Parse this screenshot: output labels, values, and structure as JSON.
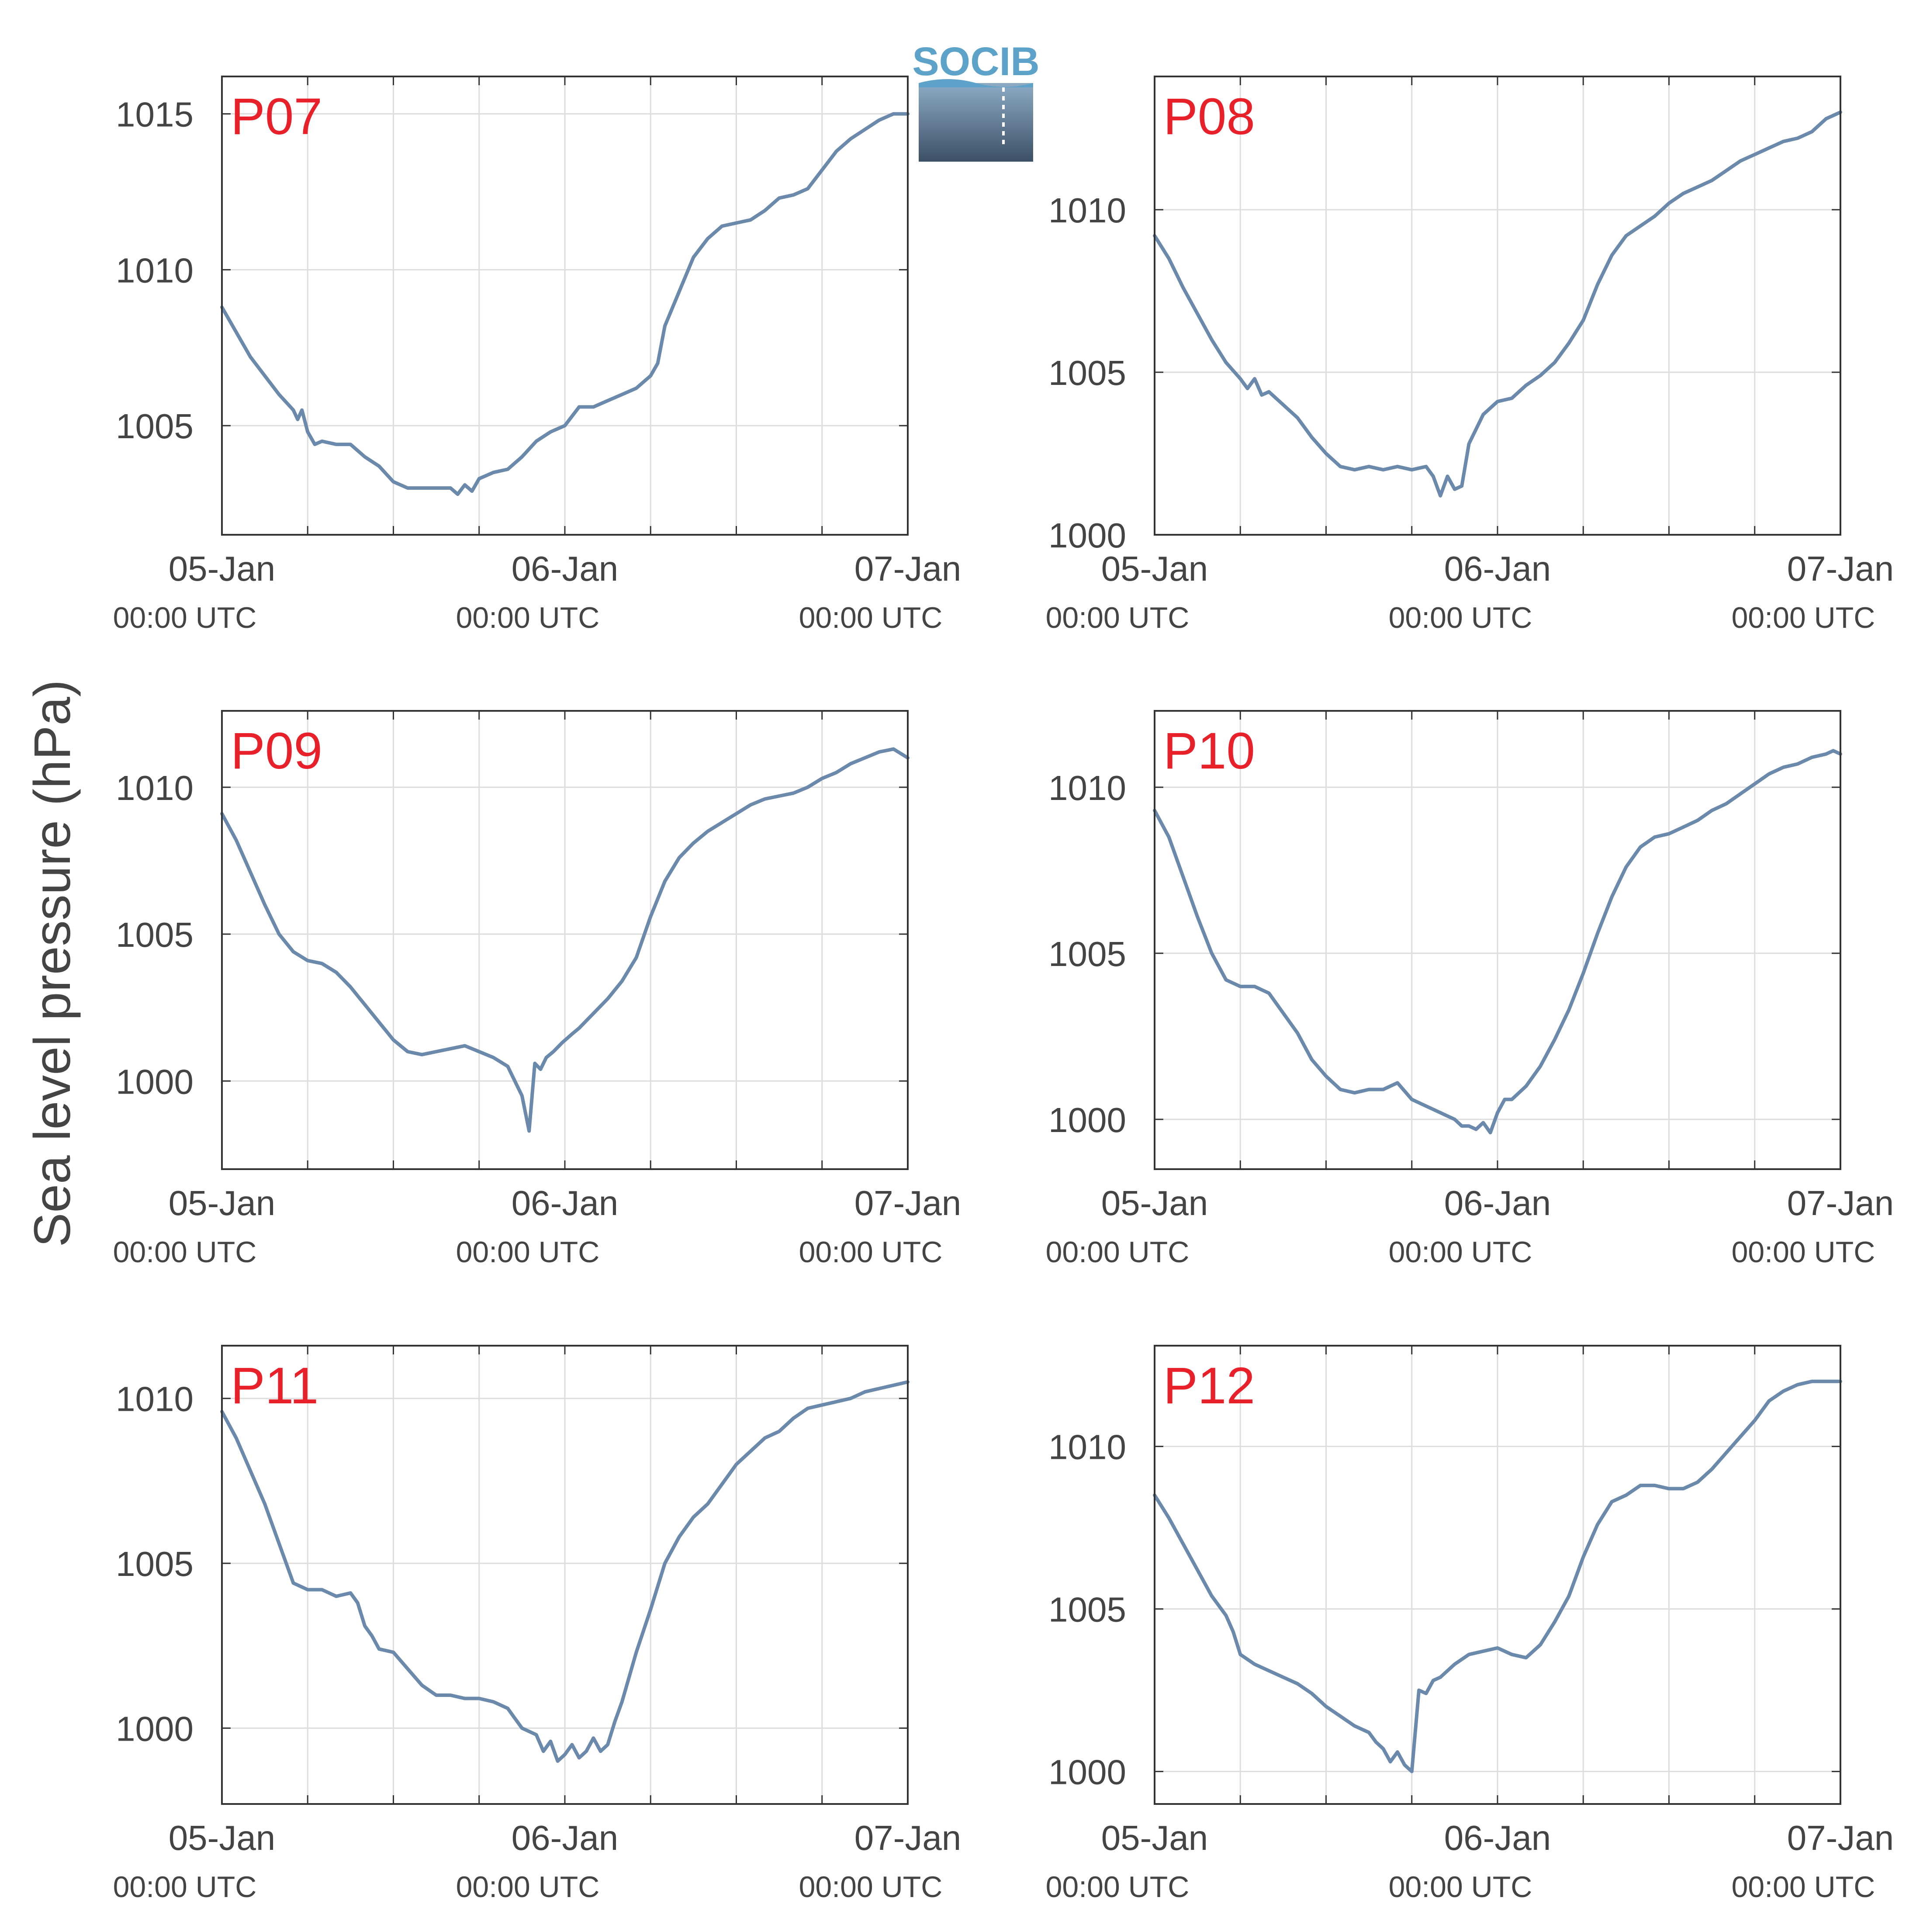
{
  "figure": {
    "ylabel": "Sea level pressure (hPa)",
    "logo_text": "SOCIB",
    "colors": {
      "line": "#6a89ab",
      "panel_label": "#e8202a",
      "grid": "#dddddd",
      "frame": "#333333",
      "text": "#444444",
      "logo_top": "#8dabc5",
      "logo_bottom": "#3c5066",
      "logo_text": "#5da2c8"
    }
  },
  "chart_data": [
    {
      "type": "line",
      "title": "P07",
      "x_ticks": [
        {
          "main": "05-Jan",
          "sub": "00:00 UTC"
        },
        {
          "main": "06-Jan",
          "sub": "00:00 UTC"
        },
        {
          "main": "07-Jan",
          "sub": "00:00 UTC"
        }
      ],
      "x_unit": "hours since 05-Jan 00:00 UTC",
      "xlim": [
        0,
        48
      ],
      "ylim": [
        1001.5,
        1016.2
      ],
      "y_ticks": [
        1005,
        1010,
        1015
      ],
      "grid": true,
      "series": [
        {
          "x": [
            0,
            1,
            2,
            3,
            4,
            5,
            5.3,
            5.6,
            6,
            6.5,
            7,
            8,
            9,
            10,
            11,
            12,
            13,
            14,
            15,
            16,
            16.5,
            17,
            17.5,
            18,
            19,
            20,
            21,
            22,
            23,
            24,
            25,
            26,
            27,
            28,
            29,
            30,
            30.5,
            31,
            32,
            33,
            34,
            35,
            36,
            37,
            38,
            39,
            40,
            41,
            42,
            43,
            44,
            45,
            46,
            47,
            48
          ],
          "y": [
            1008.8,
            1008.0,
            1007.2,
            1006.6,
            1006.0,
            1005.5,
            1005.2,
            1005.5,
            1004.8,
            1004.4,
            1004.5,
            1004.4,
            1004.4,
            1004.0,
            1003.7,
            1003.2,
            1003.0,
            1003.0,
            1003.0,
            1003.0,
            1002.8,
            1003.1,
            1002.9,
            1003.3,
            1003.5,
            1003.6,
            1004.0,
            1004.5,
            1004.8,
            1005.0,
            1005.6,
            1005.6,
            1005.8,
            1006.0,
            1006.2,
            1006.6,
            1007.0,
            1008.2,
            1009.3,
            1010.4,
            1011.0,
            1011.4,
            1011.5,
            1011.6,
            1011.9,
            1012.3,
            1012.4,
            1012.6,
            1013.2,
            1013.8,
            1014.2,
            1014.5,
            1014.8,
            1015.0,
            1015.0
          ]
        }
      ]
    },
    {
      "type": "line",
      "title": "P08",
      "x_ticks": [
        {
          "main": "05-Jan",
          "sub": "00:00 UTC"
        },
        {
          "main": "06-Jan",
          "sub": "00:00 UTC"
        },
        {
          "main": "07-Jan",
          "sub": "00:00 UTC"
        }
      ],
      "x_unit": "hours since 05-Jan 00:00 UTC",
      "xlim": [
        0,
        48
      ],
      "ylim": [
        1000,
        1014.1
      ],
      "y_ticks": [
        1000,
        1005,
        1010
      ],
      "grid": true,
      "series": [
        {
          "x": [
            0,
            1,
            2,
            3,
            4,
            5,
            6,
            6.5,
            7,
            7.5,
            8,
            9,
            10,
            11,
            12,
            13,
            14,
            15,
            16,
            17,
            18,
            19,
            19.5,
            20,
            20.5,
            21,
            21.5,
            22,
            23,
            24,
            25,
            26,
            27,
            28,
            29,
            30,
            31,
            32,
            33,
            34,
            35,
            36,
            37,
            38,
            39,
            40,
            41,
            42,
            43,
            44,
            45,
            46,
            47,
            48
          ],
          "y": [
            1009.2,
            1008.5,
            1007.6,
            1006.8,
            1006.0,
            1005.3,
            1004.8,
            1004.5,
            1004.8,
            1004.3,
            1004.4,
            1004.0,
            1003.6,
            1003.0,
            1002.5,
            1002.1,
            1002.0,
            1002.1,
            1002.0,
            1002.1,
            1002.0,
            1002.1,
            1001.8,
            1001.2,
            1001.8,
            1001.4,
            1001.5,
            1002.8,
            1003.7,
            1004.1,
            1004.2,
            1004.6,
            1004.9,
            1005.3,
            1005.9,
            1006.6,
            1007.7,
            1008.6,
            1009.2,
            1009.5,
            1009.8,
            1010.2,
            1010.5,
            1010.7,
            1010.9,
            1011.2,
            1011.5,
            1011.7,
            1011.9,
            1012.1,
            1012.2,
            1012.4,
            1012.8,
            1013.0
          ]
        }
      ]
    },
    {
      "type": "line",
      "title": "P09",
      "x_ticks": [
        {
          "main": "05-Jan",
          "sub": "00:00 UTC"
        },
        {
          "main": "06-Jan",
          "sub": "00:00 UTC"
        },
        {
          "main": "07-Jan",
          "sub": "00:00 UTC"
        }
      ],
      "x_unit": "hours since 05-Jan 00:00 UTC",
      "xlim": [
        0,
        48
      ],
      "ylim": [
        997.0,
        1012.6
      ],
      "y_ticks": [
        1000,
        1005,
        1010
      ],
      "grid": true,
      "series": [
        {
          "x": [
            0,
            1,
            2,
            3,
            4,
            5,
            6,
            7,
            8,
            9,
            10,
            11,
            12,
            13,
            14,
            15,
            16,
            17,
            18,
            19,
            20,
            20.5,
            21,
            21.5,
            21.9,
            22.3,
            22.7,
            23.2,
            23.8,
            24.5,
            25,
            26,
            27,
            28,
            29,
            30,
            31,
            32,
            33,
            34,
            35,
            36,
            37,
            38,
            39,
            40,
            41,
            42,
            43,
            44,
            45,
            46,
            47,
            48
          ],
          "y": [
            1009.1,
            1008.2,
            1007.1,
            1006.0,
            1005.0,
            1004.4,
            1004.1,
            1004.0,
            1003.7,
            1003.2,
            1002.6,
            1002.0,
            1001.4,
            1001.0,
            1000.9,
            1001.0,
            1001.1,
            1001.2,
            1001.0,
            1000.8,
            1000.5,
            1000.0,
            999.5,
            998.3,
            1000.6,
            1000.4,
            1000.8,
            1001.0,
            1001.3,
            1001.6,
            1001.8,
            1002.3,
            1002.8,
            1003.4,
            1004.2,
            1005.6,
            1006.8,
            1007.6,
            1008.1,
            1008.5,
            1008.8,
            1009.1,
            1009.4,
            1009.6,
            1009.7,
            1009.8,
            1010.0,
            1010.3,
            1010.5,
            1010.8,
            1011.0,
            1011.2,
            1011.3,
            1011.0
          ]
        }
      ]
    },
    {
      "type": "line",
      "title": "P10",
      "x_ticks": [
        {
          "main": "05-Jan",
          "sub": "00:00 UTC"
        },
        {
          "main": "06-Jan",
          "sub": "00:00 UTC"
        },
        {
          "main": "07-Jan",
          "sub": "00:00 UTC"
        }
      ],
      "x_unit": "hours since 05-Jan 00:00 UTC",
      "xlim": [
        0,
        48
      ],
      "ylim": [
        998.5,
        1012.3
      ],
      "y_ticks": [
        1000,
        1005,
        1010
      ],
      "grid": true,
      "series": [
        {
          "x": [
            0,
            1,
            2,
            3,
            4,
            5,
            6,
            7,
            8,
            9,
            10,
            11,
            12,
            13,
            14,
            15,
            16,
            17,
            18,
            19,
            20,
            21,
            21.5,
            22,
            22.5,
            23,
            23.5,
            24,
            24.5,
            25,
            26,
            27,
            28,
            29,
            30,
            31,
            32,
            33,
            34,
            35,
            36,
            37,
            38,
            39,
            40,
            41,
            42,
            43,
            44,
            45,
            46,
            47,
            47.5,
            48
          ],
          "y": [
            1009.3,
            1008.5,
            1007.3,
            1006.1,
            1005.0,
            1004.2,
            1004.0,
            1004.0,
            1003.8,
            1003.2,
            1002.6,
            1001.8,
            1001.3,
            1000.9,
            1000.8,
            1000.9,
            1000.9,
            1001.1,
            1000.6,
            1000.4,
            1000.2,
            1000.0,
            999.8,
            999.8,
            999.7,
            999.9,
            999.6,
            1000.2,
            1000.6,
            1000.6,
            1001.0,
            1001.6,
            1002.4,
            1003.3,
            1004.4,
            1005.6,
            1006.7,
            1007.6,
            1008.2,
            1008.5,
            1008.6,
            1008.8,
            1009.0,
            1009.3,
            1009.5,
            1009.8,
            1010.1,
            1010.4,
            1010.6,
            1010.7,
            1010.9,
            1011.0,
            1011.1,
            1011.0
          ]
        }
      ]
    },
    {
      "type": "line",
      "title": "P11",
      "x_ticks": [
        {
          "main": "05-Jan",
          "sub": "00:00 UTC"
        },
        {
          "main": "06-Jan",
          "sub": "00:00 UTC"
        },
        {
          "main": "07-Jan",
          "sub": "00:00 UTC"
        }
      ],
      "x_unit": "hours since 05-Jan 00:00 UTC",
      "xlim": [
        0,
        48
      ],
      "ylim": [
        997.7,
        1011.6
      ],
      "y_ticks": [
        1000,
        1005,
        1010
      ],
      "grid": true,
      "series": [
        {
          "x": [
            0,
            1,
            2,
            3,
            4,
            5,
            6,
            7,
            8,
            9,
            9.5,
            10,
            10.5,
            11,
            12,
            13,
            14,
            15,
            16,
            17,
            18,
            19,
            20,
            20.5,
            21,
            22,
            22.5,
            23,
            23.5,
            24,
            24.5,
            25,
            25.5,
            26,
            26.5,
            27,
            27.5,
            28,
            29,
            30,
            31,
            32,
            33,
            34,
            35,
            36,
            37,
            38,
            39,
            40,
            41,
            42,
            43,
            44,
            45,
            46,
            47,
            48
          ],
          "y": [
            1009.6,
            1008.8,
            1007.8,
            1006.8,
            1005.6,
            1004.4,
            1004.2,
            1004.2,
            1004.0,
            1004.1,
            1003.8,
            1003.1,
            1002.8,
            1002.4,
            1002.3,
            1001.8,
            1001.3,
            1001.0,
            1001.0,
            1000.9,
            1000.9,
            1000.8,
            1000.6,
            1000.3,
            1000.0,
            999.8,
            999.3,
            999.6,
            999.0,
            999.2,
            999.5,
            999.1,
            999.3,
            999.7,
            999.3,
            999.5,
            1000.2,
            1000.8,
            1002.3,
            1003.6,
            1005.0,
            1005.8,
            1006.4,
            1006.8,
            1007.4,
            1008.0,
            1008.4,
            1008.8,
            1009.0,
            1009.4,
            1009.7,
            1009.8,
            1009.9,
            1010.0,
            1010.2,
            1010.3,
            1010.4,
            1010.5
          ]
        }
      ]
    },
    {
      "type": "line",
      "title": "P12",
      "x_ticks": [
        {
          "main": "05-Jan",
          "sub": "00:00 UTC"
        },
        {
          "main": "06-Jan",
          "sub": "00:00 UTC"
        },
        {
          "main": "07-Jan",
          "sub": "00:00 UTC"
        }
      ],
      "x_unit": "hours since 05-Jan 00:00 UTC",
      "xlim": [
        0,
        48
      ],
      "ylim": [
        999.0,
        1013.1
      ],
      "y_ticks": [
        1000,
        1005,
        1010
      ],
      "grid": true,
      "series": [
        {
          "x": [
            0,
            1,
            2,
            3,
            4,
            5,
            5.5,
            6,
            7,
            8,
            9,
            10,
            11,
            12,
            13,
            14,
            15,
            15.5,
            16,
            16.5,
            17,
            17.5,
            18,
            18.5,
            19,
            19.5,
            20,
            21,
            22,
            23,
            24,
            25,
            26,
            27,
            28,
            29,
            30,
            31,
            32,
            33,
            34,
            35,
            36,
            37,
            38,
            39,
            40,
            41,
            42,
            43,
            44,
            45,
            46,
            47,
            48
          ],
          "y": [
            1008.5,
            1007.8,
            1007.0,
            1006.2,
            1005.4,
            1004.8,
            1004.3,
            1003.6,
            1003.3,
            1003.1,
            1002.9,
            1002.7,
            1002.4,
            1002.0,
            1001.7,
            1001.4,
            1001.2,
            1000.9,
            1000.7,
            1000.3,
            1000.6,
            1000.2,
            1000.0,
            1002.5,
            1002.4,
            1002.8,
            1002.9,
            1003.3,
            1003.6,
            1003.7,
            1003.8,
            1003.6,
            1003.5,
            1003.9,
            1004.6,
            1005.4,
            1006.6,
            1007.6,
            1008.3,
            1008.5,
            1008.8,
            1008.8,
            1008.7,
            1008.7,
            1008.9,
            1009.3,
            1009.8,
            1010.3,
            1010.8,
            1011.4,
            1011.7,
            1011.9,
            1012.0,
            1012.0,
            1012.0
          ]
        }
      ]
    }
  ]
}
